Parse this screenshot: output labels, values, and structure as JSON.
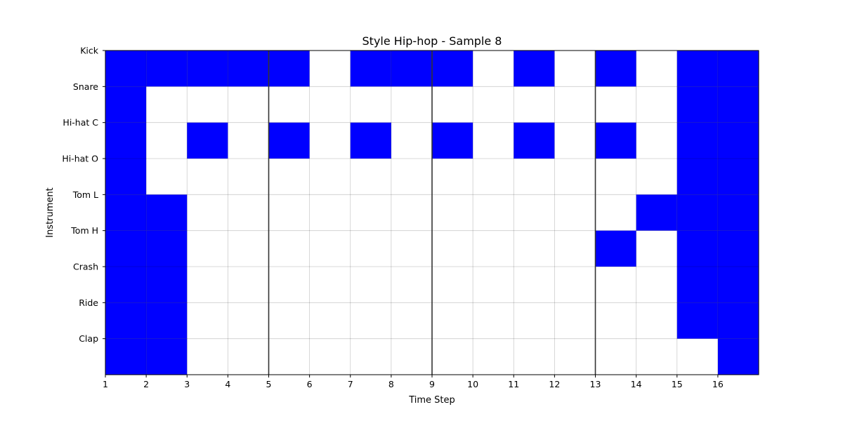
{
  "chart_data": {
    "type": "heatmap",
    "title": "Style Hip-hop - Sample 8",
    "xlabel": "Time Step",
    "ylabel": "Instrument",
    "x_tick_labels": [
      "1",
      "2",
      "3",
      "4",
      "5",
      "6",
      "7",
      "8",
      "9",
      "10",
      "11",
      "12",
      "13",
      "14",
      "15",
      "16"
    ],
    "rows": [
      "Kick",
      "Snare",
      "Hi-hat C",
      "Hi-hat O",
      "Tom L",
      "Tom H",
      "Crash",
      "Ride",
      "Clap"
    ],
    "steps": 16,
    "bar_lines_at_steps": [
      5,
      9,
      13
    ],
    "grid": true,
    "active_color": "#0000ff",
    "inactive_color": "#ffffff",
    "cells": [
      [
        1,
        1,
        1,
        1,
        1,
        0,
        1,
        1,
        1,
        0,
        1,
        0,
        1,
        0,
        1,
        1
      ],
      [
        1,
        0,
        0,
        0,
        0,
        0,
        0,
        0,
        0,
        0,
        0,
        0,
        0,
        0,
        1,
        1
      ],
      [
        1,
        0,
        1,
        0,
        1,
        0,
        1,
        0,
        1,
        0,
        1,
        0,
        1,
        0,
        1,
        1
      ],
      [
        1,
        0,
        0,
        0,
        0,
        0,
        0,
        0,
        0,
        0,
        0,
        0,
        0,
        0,
        1,
        1
      ],
      [
        1,
        1,
        0,
        0,
        0,
        0,
        0,
        0,
        0,
        0,
        0,
        0,
        0,
        1,
        1,
        1
      ],
      [
        1,
        1,
        0,
        0,
        0,
        0,
        0,
        0,
        0,
        0,
        0,
        0,
        1,
        0,
        1,
        1
      ],
      [
        1,
        1,
        0,
        0,
        0,
        0,
        0,
        0,
        0,
        0,
        0,
        0,
        0,
        0,
        1,
        1
      ],
      [
        1,
        1,
        0,
        0,
        0,
        0,
        0,
        0,
        0,
        0,
        0,
        0,
        0,
        0,
        1,
        1
      ],
      [
        1,
        1,
        0,
        0,
        0,
        0,
        0,
        0,
        0,
        0,
        0,
        0,
        0,
        0,
        0,
        1
      ]
    ]
  }
}
